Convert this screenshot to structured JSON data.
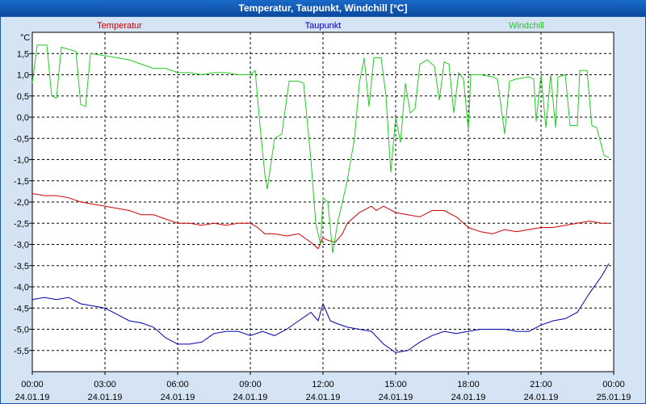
{
  "window": {
    "title": "Temperatur, Taupunkt, Windchill [°C]"
  },
  "chart_data": {
    "type": "line",
    "ylabel": "°C",
    "ylim": [
      -6.0,
      2.0
    ],
    "xlim": [
      0,
      24
    ],
    "y_ticks": [
      "1,5",
      "1,0",
      "0,5",
      "0,0",
      "-0,5",
      "-1,0",
      "-1,5",
      "-2,0",
      "-2,5",
      "-3,0",
      "-3,5",
      "-4,0",
      "-4,5",
      "-5,0",
      "-5,5"
    ],
    "y_tick_values": [
      1.5,
      1.0,
      0.5,
      0.0,
      -0.5,
      -1.0,
      -1.5,
      -2.0,
      -2.5,
      -3.0,
      -3.5,
      -4.0,
      -4.5,
      -5.0,
      -5.5
    ],
    "x_ticks": [
      {
        "x": 0,
        "time": "00:00",
        "date": "24.01.19"
      },
      {
        "x": 3,
        "time": "03:00",
        "date": "24.01.19"
      },
      {
        "x": 6,
        "time": "06:00",
        "date": "24.01.19"
      },
      {
        "x": 9,
        "time": "09:00",
        "date": "24.01.19"
      },
      {
        "x": 12,
        "time": "12:00",
        "date": "24.01.19"
      },
      {
        "x": 15,
        "time": "15:00",
        "date": "24.01.19"
      },
      {
        "x": 18,
        "time": "18:00",
        "date": "24.01.19"
      },
      {
        "x": 21,
        "time": "21:00",
        "date": "24.01.19"
      },
      {
        "x": 24,
        "time": "00:00",
        "date": "25.01.19"
      }
    ],
    "grid": true,
    "legend_position": "top",
    "series": [
      {
        "name": "Temperatur",
        "color": "#cc0000",
        "points": [
          [
            0,
            -1.8
          ],
          [
            0.5,
            -1.85
          ],
          [
            1,
            -1.85
          ],
          [
            1.5,
            -1.9
          ],
          [
            2,
            -2.0
          ],
          [
            2.5,
            -2.05
          ],
          [
            3,
            -2.1
          ],
          [
            3.5,
            -2.15
          ],
          [
            4,
            -2.2
          ],
          [
            4.5,
            -2.3
          ],
          [
            5,
            -2.3
          ],
          [
            5.5,
            -2.4
          ],
          [
            6,
            -2.5
          ],
          [
            6.5,
            -2.5
          ],
          [
            7,
            -2.55
          ],
          [
            7.5,
            -2.5
          ],
          [
            8,
            -2.55
          ],
          [
            8.5,
            -2.5
          ],
          [
            9,
            -2.5
          ],
          [
            9.3,
            -2.6
          ],
          [
            9.6,
            -2.75
          ],
          [
            10,
            -2.75
          ],
          [
            10.5,
            -2.8
          ],
          [
            11,
            -2.75
          ],
          [
            11.5,
            -2.95
          ],
          [
            11.8,
            -3.1
          ],
          [
            12,
            -2.85
          ],
          [
            12.2,
            -2.9
          ],
          [
            12.5,
            -2.95
          ],
          [
            12.8,
            -2.75
          ],
          [
            13,
            -2.5
          ],
          [
            13.5,
            -2.25
          ],
          [
            14,
            -2.1
          ],
          [
            14.2,
            -2.2
          ],
          [
            14.5,
            -2.1
          ],
          [
            15,
            -2.25
          ],
          [
            15.5,
            -2.3
          ],
          [
            16,
            -2.35
          ],
          [
            16.5,
            -2.2
          ],
          [
            17,
            -2.2
          ],
          [
            17.5,
            -2.35
          ],
          [
            18,
            -2.6
          ],
          [
            18.5,
            -2.7
          ],
          [
            19,
            -2.75
          ],
          [
            19.5,
            -2.65
          ],
          [
            20,
            -2.7
          ],
          [
            20.5,
            -2.65
          ],
          [
            21,
            -2.6
          ],
          [
            21.5,
            -2.6
          ],
          [
            22,
            -2.55
          ],
          [
            22.5,
            -2.5
          ],
          [
            23,
            -2.45
          ],
          [
            23.5,
            -2.5
          ],
          [
            23.8,
            -2.5
          ]
        ]
      },
      {
        "name": "Taupunkt",
        "color": "#0000aa",
        "points": [
          [
            0,
            -4.3
          ],
          [
            0.5,
            -4.25
          ],
          [
            1,
            -4.3
          ],
          [
            1.5,
            -4.25
          ],
          [
            2,
            -4.4
          ],
          [
            2.5,
            -4.45
          ],
          [
            3,
            -4.5
          ],
          [
            3.5,
            -4.65
          ],
          [
            4,
            -4.8
          ],
          [
            4.5,
            -4.85
          ],
          [
            5,
            -4.95
          ],
          [
            5.5,
            -5.2
          ],
          [
            6,
            -5.35
          ],
          [
            6.5,
            -5.35
          ],
          [
            7,
            -5.3
          ],
          [
            7.5,
            -5.1
          ],
          [
            8,
            -5.05
          ],
          [
            8.5,
            -5.05
          ],
          [
            9,
            -5.15
          ],
          [
            9.5,
            -5.05
          ],
          [
            10,
            -5.15
          ],
          [
            10.5,
            -5.0
          ],
          [
            11,
            -4.8
          ],
          [
            11.5,
            -4.6
          ],
          [
            11.8,
            -4.8
          ],
          [
            12,
            -4.4
          ],
          [
            12.3,
            -4.8
          ],
          [
            12.5,
            -4.85
          ],
          [
            13,
            -4.95
          ],
          [
            13.5,
            -5.0
          ],
          [
            14,
            -5.05
          ],
          [
            14.5,
            -5.35
          ],
          [
            15,
            -5.55
          ],
          [
            15.5,
            -5.5
          ],
          [
            16,
            -5.3
          ],
          [
            16.5,
            -5.15
          ],
          [
            17,
            -5.05
          ],
          [
            17.5,
            -5.1
          ],
          [
            18,
            -5.05
          ],
          [
            18.5,
            -5.0
          ],
          [
            19,
            -5.0
          ],
          [
            19.5,
            -5.0
          ],
          [
            20,
            -5.05
          ],
          [
            20.5,
            -5.05
          ],
          [
            21,
            -4.9
          ],
          [
            21.5,
            -4.8
          ],
          [
            22,
            -4.75
          ],
          [
            22.5,
            -4.6
          ],
          [
            23,
            -4.15
          ],
          [
            23.5,
            -3.75
          ],
          [
            23.8,
            -3.45
          ]
        ]
      },
      {
        "name": "Windchill",
        "color": "#22cc22",
        "points": [
          [
            0,
            0.8
          ],
          [
            0.2,
            1.7
          ],
          [
            0.6,
            1.7
          ],
          [
            0.8,
            0.5
          ],
          [
            1.0,
            0.45
          ],
          [
            1.2,
            1.65
          ],
          [
            1.8,
            1.55
          ],
          [
            2.0,
            0.3
          ],
          [
            2.2,
            0.25
          ],
          [
            2.4,
            1.5
          ],
          [
            3.0,
            1.45
          ],
          [
            3.5,
            1.4
          ],
          [
            4.0,
            1.35
          ],
          [
            4.5,
            1.25
          ],
          [
            5.0,
            1.15
          ],
          [
            5.5,
            1.15
          ],
          [
            6.0,
            1.05
          ],
          [
            6.5,
            1.05
          ],
          [
            7.0,
            1.0
          ],
          [
            7.5,
            1.05
          ],
          [
            8.0,
            1.05
          ],
          [
            8.5,
            1.0
          ],
          [
            9.0,
            1.0
          ],
          [
            9.2,
            1.1
          ],
          [
            9.4,
            -0.2
          ],
          [
            9.6,
            -1.35
          ],
          [
            9.7,
            -1.7
          ],
          [
            10.0,
            -0.5
          ],
          [
            10.3,
            -0.4
          ],
          [
            10.6,
            0.85
          ],
          [
            11.0,
            0.85
          ],
          [
            11.2,
            0.8
          ],
          [
            11.5,
            -1.0
          ],
          [
            11.7,
            -2.5
          ],
          [
            11.9,
            -3.0
          ],
          [
            12.0,
            -1.9
          ],
          [
            12.2,
            -2.0
          ],
          [
            12.4,
            -3.2
          ],
          [
            12.6,
            -2.5
          ],
          [
            13.0,
            -1.5
          ],
          [
            13.3,
            -0.5
          ],
          [
            13.5,
            0.8
          ],
          [
            13.7,
            1.4
          ],
          [
            13.9,
            0.25
          ],
          [
            14.1,
            1.4
          ],
          [
            14.4,
            1.4
          ],
          [
            14.6,
            0.5
          ],
          [
            14.8,
            -1.3
          ],
          [
            15.0,
            0.0
          ],
          [
            15.2,
            -0.6
          ],
          [
            15.4,
            0.8
          ],
          [
            15.6,
            0.1
          ],
          [
            15.8,
            0.2
          ],
          [
            16.0,
            1.25
          ],
          [
            16.3,
            1.35
          ],
          [
            16.6,
            1.2
          ],
          [
            16.8,
            0.4
          ],
          [
            17.0,
            1.3
          ],
          [
            17.2,
            1.25
          ],
          [
            17.4,
            0.1
          ],
          [
            17.6,
            1.05
          ],
          [
            17.8,
            0.9
          ],
          [
            18.0,
            -0.3
          ],
          [
            18.1,
            1.0
          ],
          [
            18.5,
            1.0
          ],
          [
            19.0,
            0.95
          ],
          [
            19.2,
            0.9
          ],
          [
            19.5,
            -0.4
          ],
          [
            19.7,
            0.85
          ],
          [
            20.0,
            0.9
          ],
          [
            20.5,
            0.95
          ],
          [
            20.7,
            0.9
          ],
          [
            20.8,
            -0.1
          ],
          [
            21.0,
            1.0
          ],
          [
            21.2,
            -0.25
          ],
          [
            21.4,
            1.0
          ],
          [
            21.6,
            -0.25
          ],
          [
            21.7,
            0.95
          ],
          [
            22.0,
            1.0
          ],
          [
            22.2,
            -0.2
          ],
          [
            22.5,
            -0.2
          ],
          [
            22.6,
            1.1
          ],
          [
            22.9,
            1.1
          ],
          [
            23.1,
            -0.2
          ],
          [
            23.3,
            -0.25
          ],
          [
            23.6,
            -0.9
          ],
          [
            23.8,
            -0.95
          ]
        ]
      }
    ]
  }
}
